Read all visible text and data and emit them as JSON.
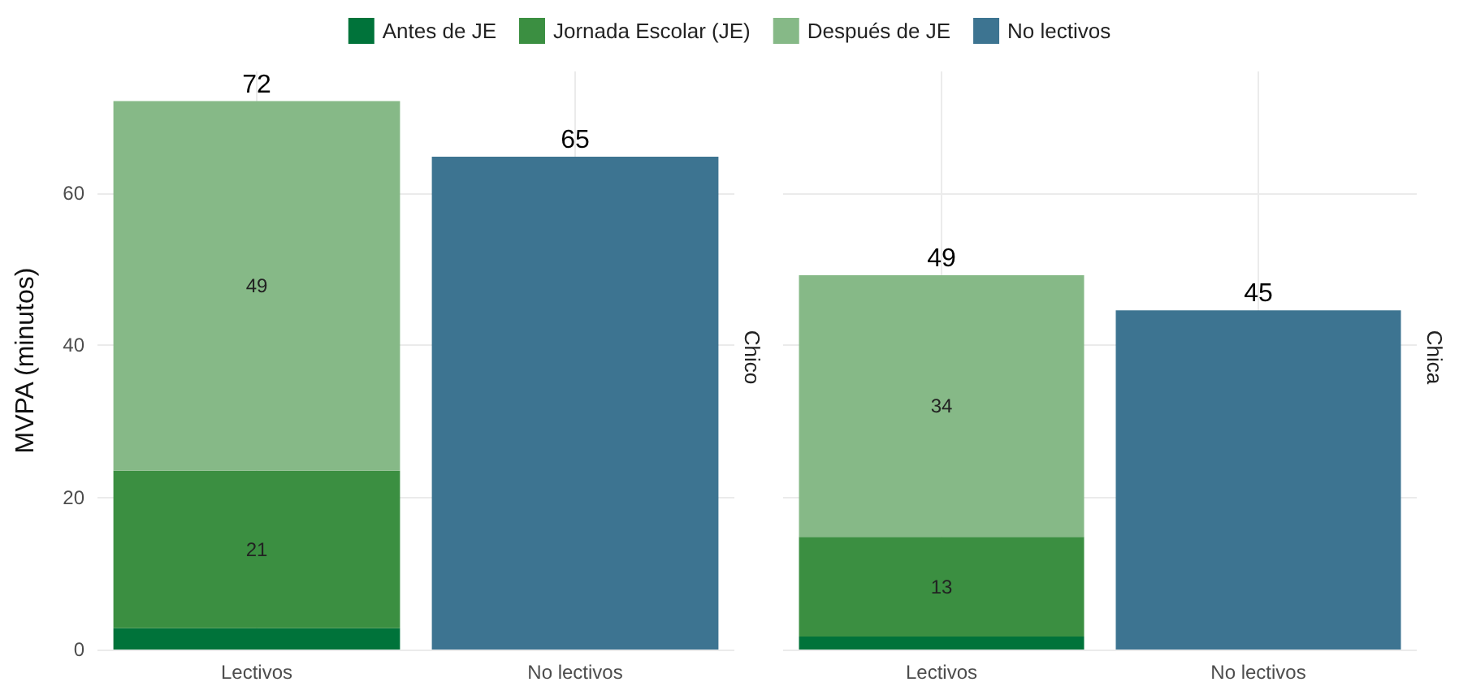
{
  "chart_data": [
    {
      "type": "bar",
      "stacked": true,
      "ylabel": "MVPA (minutos)",
      "annotations": [
        "Chico"
      ],
      "categories": [
        "Lectivos",
        "No lectivos"
      ],
      "ylim": [
        0,
        76
      ],
      "yticks": [
        0,
        20,
        40,
        60
      ],
      "grid": true,
      "legend": "top",
      "totals": [
        "72",
        "65"
      ],
      "series": [
        {
          "name": "Antes de JE",
          "color": "#00733a",
          "values": [
            2.8,
            null
          ]
        },
        {
          "name": "Jornada Escolar (JE)",
          "color": "#3b8f41",
          "values": [
            20.7,
            null
          ],
          "value_labels": [
            "21",
            null
          ]
        },
        {
          "name": "Después de JE",
          "color": "#86b987",
          "values": [
            48.6,
            null
          ],
          "value_labels": [
            "49",
            null
          ]
        },
        {
          "name": "No lectivos",
          "color": "#3d7491",
          "values": [
            null,
            64.8
          ]
        }
      ]
    },
    {
      "type": "bar",
      "stacked": true,
      "annotations": [
        "Chica"
      ],
      "categories": [
        "Lectivos",
        "No lectivos"
      ],
      "ylim": [
        0,
        76
      ],
      "yticks": [
        0,
        20,
        40,
        60
      ],
      "grid": true,
      "tick_labels": "x",
      "totals": [
        "49",
        "45"
      ],
      "series": [
        {
          "color": "#00733a",
          "values": [
            1.7,
            null
          ]
        },
        {
          "color": "#3b8f41",
          "values": [
            13.1,
            null
          ],
          "value_labels": [
            "13",
            null
          ]
        },
        {
          "color": "#86b987",
          "values": [
            34.4,
            null
          ],
          "value_labels": [
            "34",
            null
          ]
        },
        {
          "color": "#3d7491",
          "values": [
            null,
            44.6
          ]
        }
      ]
    }
  ]
}
